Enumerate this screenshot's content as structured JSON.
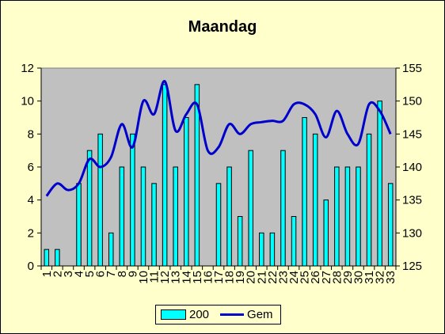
{
  "chart_data": {
    "type": "bar",
    "title": "Maandag",
    "categories": [
      "1",
      "2",
      "3",
      "4",
      "5",
      "6",
      "7",
      "8",
      "9",
      "10",
      "11",
      "12",
      "13",
      "14",
      "15",
      "16",
      "17",
      "18",
      "19",
      "20",
      "21",
      "22",
      "23",
      "24",
      "25",
      "26",
      "27",
      "28",
      "29",
      "30",
      "31",
      "32",
      "33"
    ],
    "series": [
      {
        "name": "200",
        "type": "bar",
        "axis": "left",
        "color": "#00FFFF",
        "values": [
          1,
          1,
          0,
          5,
          7,
          8,
          2,
          6,
          8,
          6,
          5,
          11,
          6,
          9,
          11,
          0,
          5,
          6,
          3,
          7,
          2,
          2,
          7,
          3,
          9,
          8,
          4,
          6,
          6,
          6,
          8,
          10,
          5
        ]
      },
      {
        "name": "Gem",
        "type": "line",
        "smooth": true,
        "axis": "right",
        "color": "#0000CC",
        "values": [
          135.6,
          137.5,
          136.5,
          137.5,
          141.2,
          140,
          141.5,
          146.5,
          143,
          150,
          148,
          153,
          145.5,
          148,
          149.5,
          142.5,
          143,
          146.5,
          145,
          146.5,
          146.8,
          147,
          147,
          149.5,
          149.5,
          148,
          144.5,
          148.5,
          145,
          143.5,
          149.5,
          148.5,
          145
        ]
      }
    ],
    "ylim": [
      0,
      12
    ],
    "y_ticks": [
      0,
      2,
      4,
      6,
      8,
      10,
      12
    ],
    "y2lim": [
      125,
      155
    ],
    "y2_ticks": [
      125,
      130,
      135,
      140,
      145,
      150,
      155
    ],
    "plot_background": "#C0C0C0",
    "page_background": "#FFFFCC",
    "grid": false,
    "legend_position": "bottom"
  }
}
